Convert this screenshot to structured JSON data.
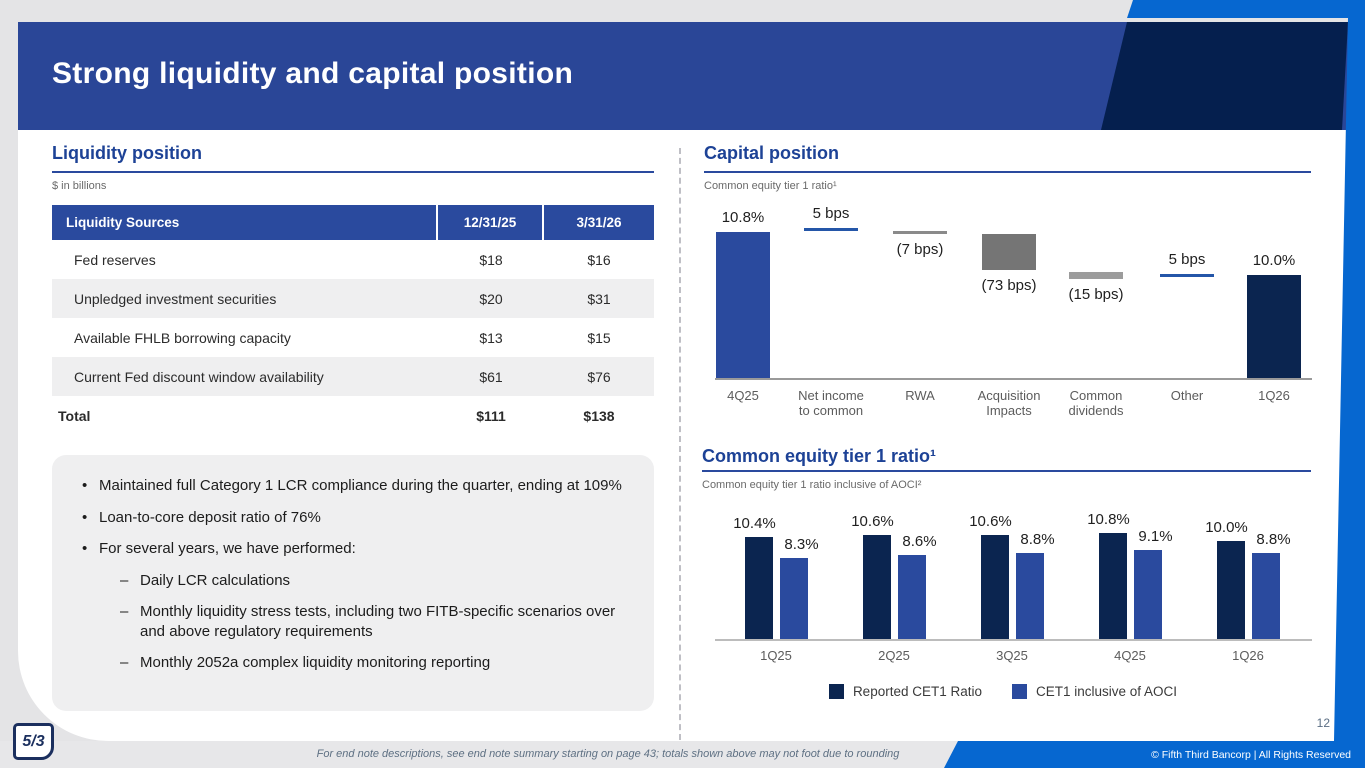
{
  "slide": {
    "title": "Strong liquidity and capital position",
    "page_number": "12",
    "footnote": "For end note descriptions, see end note summary starting on page 43; totals shown above may not foot due to rounding",
    "copyright": "© Fifth Third Bancorp | All Rights Reserved",
    "logo_text": "5/3"
  },
  "colors": {
    "accent_blue": "#2a4a9e",
    "navy": "#0b2550",
    "bright_blue": "#0667d0",
    "header_blue": "#2a4697",
    "header_navy": "#051f4e",
    "gray_bar": "#757575",
    "gray_bar_light": "#9c9c9c",
    "gray_line": "#8a8a8a",
    "line_blue": "#2456a8"
  },
  "liquidity": {
    "heading": "Liquidity position",
    "units_note": "$ in billions",
    "table": {
      "headers": [
        "Liquidity Sources",
        "12/31/25",
        "3/31/26"
      ],
      "rows": [
        {
          "label": "Fed reserves",
          "v1": "$18",
          "v2": "$16"
        },
        {
          "label": "Unpledged investment securities",
          "v1": "$20",
          "v2": "$31"
        },
        {
          "label": "Available FHLB borrowing capacity",
          "v1": "$13",
          "v2": "$15"
        },
        {
          "label": "Current Fed discount window availability",
          "v1": "$61",
          "v2": "$76"
        }
      ],
      "total": {
        "label": "Total",
        "v1": "$111",
        "v2": "$138"
      }
    },
    "bullets": [
      {
        "level": 1,
        "text": "Maintained full Category 1 LCR compliance during the quarter, ending at 109%"
      },
      {
        "level": 1,
        "text": "Loan-to-core deposit ratio of 76%"
      },
      {
        "level": 1,
        "text": "For several years, we have performed:"
      },
      {
        "level": 2,
        "text": "Daily LCR calculations"
      },
      {
        "level": 2,
        "text": "Monthly liquidity stress tests, including two FITB-specific scenarios over and above regulatory requirements"
      },
      {
        "level": 2,
        "text": "Monthly 2052a complex liquidity monitoring reporting"
      }
    ]
  },
  "capital": {
    "heading": "Capital position",
    "subtitle": "Common equity tier 1 ratio¹"
  },
  "cet1": {
    "heading": "Common equity tier 1 ratio¹",
    "subtitle": "Common equity tier 1 ratio inclusive of AOCI²"
  },
  "chart_data": [
    {
      "type": "bar",
      "subtype": "waterfall",
      "title": "Capital position",
      "ylabel": "Common equity tier 1 ratio (%)",
      "categories": [
        "4Q25",
        "Net income\nto common",
        "RWA",
        "Acquisition\nImpacts",
        "Common\ndividends",
        "Other",
        "1Q26"
      ],
      "steps": [
        {
          "category": "4Q25",
          "display": "10.8%",
          "value": 10.8,
          "role": "start",
          "label_position": "above"
        },
        {
          "category": "Net income\nto common",
          "display": "5 bps",
          "value": 0.05,
          "role": "increase",
          "label_position": "above"
        },
        {
          "category": "RWA",
          "display": "(7 bps)",
          "value": -0.07,
          "role": "decrease",
          "label_position": "below"
        },
        {
          "category": "Acquisition\nImpacts",
          "display": "(73 bps)",
          "value": -0.73,
          "role": "decrease",
          "label_position": "below"
        },
        {
          "category": "Common\ndividends",
          "display": "(15 bps)",
          "value": -0.15,
          "role": "decrease",
          "label_position": "below"
        },
        {
          "category": "Other",
          "display": "5 bps",
          "value": 0.05,
          "role": "increase",
          "label_position": "above"
        },
        {
          "category": "1Q26",
          "display": "10.0%",
          "value": 10.0,
          "role": "end",
          "label_position": "above"
        }
      ]
    },
    {
      "type": "bar",
      "title": "Common equity tier 1 ratio",
      "unit": "%",
      "categories": [
        "1Q25",
        "2Q25",
        "3Q25",
        "4Q25",
        "1Q26"
      ],
      "series": [
        {
          "name": "Reported CET1 Ratio",
          "color": "#0b2550",
          "values": [
            10.4,
            10.6,
            10.6,
            10.8,
            10.0
          ],
          "labels": [
            "10.4%",
            "10.6%",
            "10.6%",
            "10.8%",
            "10.0%"
          ]
        },
        {
          "name": "CET1 inclusive of AOCI",
          "color": "#2a4a9e",
          "values": [
            8.3,
            8.6,
            8.8,
            9.1,
            8.8
          ],
          "labels": [
            "8.3%",
            "8.6%",
            "8.8%",
            "9.1%",
            "8.8%"
          ]
        }
      ],
      "legend_position": "bottom",
      "grid": false
    }
  ]
}
